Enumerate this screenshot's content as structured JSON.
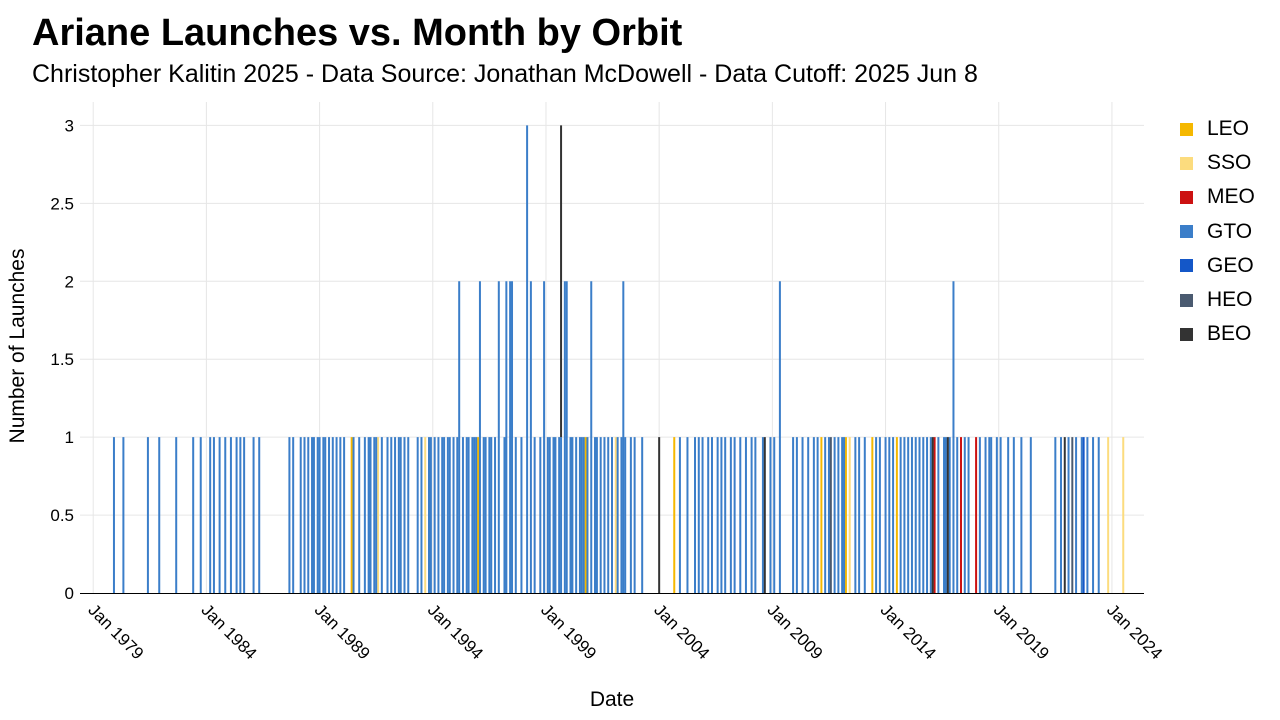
{
  "title": "Ariane Launches vs. Month by Orbit",
  "subtitle": "Christopher Kalitin 2025 - Data Source: Jonathan McDowell - Data Cutoff: 2025 Jun 8",
  "chart_data": {
    "type": "bar",
    "title": "Ariane Launches vs. Month by Orbit",
    "subtitle": "Christopher Kalitin 2025 - Data Source: Jonathan McDowell - Data Cutoff: 2025 Jun 8",
    "xlabel": "Date",
    "ylabel": "Number of Launches",
    "x_type": "date-month",
    "xlim": [
      "1978-06",
      "2025-06"
    ],
    "ylim": [
      0,
      3.15
    ],
    "x_ticks": [
      "1979-01",
      "1984-01",
      "1989-01",
      "1994-01",
      "1999-01",
      "2004-01",
      "2009-01",
      "2014-01",
      "2019-01",
      "2024-01"
    ],
    "x_tick_labels": [
      "Jan 1979",
      "Jan 1984",
      "Jan 1989",
      "Jan 1994",
      "Jan 1999",
      "Jan 2004",
      "Jan 2009",
      "Jan 2014",
      "Jan 2019",
      "Jan 2024"
    ],
    "y_ticks": [
      0,
      0.5,
      1,
      1.5,
      2,
      2.5,
      3
    ],
    "y_tick_labels": [
      "0",
      "0.5",
      "1",
      "1.5",
      "2",
      "2.5",
      "3"
    ],
    "grid": true,
    "stacked": true,
    "legend_position": "right",
    "series": [
      {
        "name": "LEO",
        "color": "#f5b800",
        "points": [
          [
            "1990-06",
            1
          ],
          [
            "1996-01",
            1
          ],
          [
            "2000-10",
            1
          ],
          [
            "2004-09",
            1
          ],
          [
            "2011-03",
            1
          ],
          [
            "2012-04",
            1
          ],
          [
            "2013-06",
            1
          ],
          [
            "2014-07",
            1
          ]
        ]
      },
      {
        "name": "SSO",
        "color": "#fcdc7e",
        "points": [
          [
            "1991-08",
            1
          ],
          [
            "1993-09",
            1
          ],
          [
            "2002-02",
            1
          ],
          [
            "2012-06",
            1
          ],
          [
            "2023-11",
            1
          ],
          [
            "2024-07",
            1
          ]
        ]
      },
      {
        "name": "MEO",
        "color": "#cc1111",
        "points": [
          [
            "2016-03",
            1
          ],
          [
            "2017-05",
            1
          ],
          [
            "2018-01",
            1
          ]
        ]
      },
      {
        "name": "GTO",
        "color": "#3b7ec9",
        "points": [
          [
            "1979-12",
            1
          ],
          [
            "1980-05",
            1
          ],
          [
            "1981-06",
            1
          ],
          [
            "1981-12",
            1
          ],
          [
            "1982-09",
            1
          ],
          [
            "1983-06",
            1
          ],
          [
            "1983-10",
            1
          ],
          [
            "1984-03",
            1
          ],
          [
            "1984-05",
            1
          ],
          [
            "1984-08",
            1
          ],
          [
            "1984-11",
            1
          ],
          [
            "1985-02",
            1
          ],
          [
            "1985-05",
            1
          ],
          [
            "1985-07",
            1
          ],
          [
            "1985-09",
            1
          ],
          [
            "1986-02",
            1
          ],
          [
            "1986-05",
            1
          ],
          [
            "1987-09",
            1
          ],
          [
            "1987-11",
            1
          ],
          [
            "1988-03",
            1
          ],
          [
            "1988-05",
            1
          ],
          [
            "1988-07",
            1
          ],
          [
            "1988-09",
            1
          ],
          [
            "1988-10",
            1
          ],
          [
            "1988-12",
            1
          ],
          [
            "1989-01",
            1
          ],
          [
            "1989-03",
            1
          ],
          [
            "1989-04",
            1
          ],
          [
            "1989-06",
            1
          ],
          [
            "1989-08",
            1
          ],
          [
            "1989-10",
            1
          ],
          [
            "1989-12",
            1
          ],
          [
            "1990-02",
            1
          ],
          [
            "1990-07",
            1
          ],
          [
            "1990-10",
            1
          ],
          [
            "1991-01",
            1
          ],
          [
            "1991-03",
            1
          ],
          [
            "1991-04",
            1
          ],
          [
            "1991-06",
            1
          ],
          [
            "1991-07",
            1
          ],
          [
            "1991-10",
            1
          ],
          [
            "1992-01",
            1
          ],
          [
            "1992-03",
            1
          ],
          [
            "1992-05",
            1
          ],
          [
            "1992-07",
            1
          ],
          [
            "1992-08",
            1
          ],
          [
            "1992-10",
            1
          ],
          [
            "1992-12",
            1
          ],
          [
            "1993-05",
            1
          ],
          [
            "1993-07",
            1
          ],
          [
            "1993-11",
            1
          ],
          [
            "1993-12",
            1
          ],
          [
            "1994-02",
            1
          ],
          [
            "1994-04",
            1
          ],
          [
            "1994-06",
            1
          ],
          [
            "1994-07",
            1
          ],
          [
            "1994-09",
            1
          ],
          [
            "1994-10",
            1
          ],
          [
            "1994-12",
            1
          ],
          [
            "1995-02",
            1
          ],
          [
            "1995-03",
            2
          ],
          [
            "1995-05",
            1
          ],
          [
            "1995-07",
            1
          ],
          [
            "1995-08",
            1
          ],
          [
            "1995-10",
            1
          ],
          [
            "1995-11",
            1
          ],
          [
            "1995-12",
            1
          ],
          [
            "1996-02",
            2
          ],
          [
            "1996-04",
            1
          ],
          [
            "1996-05",
            1
          ],
          [
            "1996-07",
            1
          ],
          [
            "1996-08",
            1
          ],
          [
            "1996-10",
            1
          ],
          [
            "1996-12",
            2
          ],
          [
            "1997-03",
            1
          ],
          [
            "1997-04",
            2
          ],
          [
            "1997-06",
            2
          ],
          [
            "1997-07",
            2
          ],
          [
            "1997-09",
            1
          ],
          [
            "1997-12",
            1
          ],
          [
            "1998-03",
            3
          ],
          [
            "1998-05",
            2
          ],
          [
            "1998-07",
            1
          ],
          [
            "1998-10",
            1
          ],
          [
            "1998-12",
            2
          ],
          [
            "1999-02",
            1
          ],
          [
            "1999-03",
            1
          ],
          [
            "1999-05",
            1
          ],
          [
            "1999-06",
            1
          ],
          [
            "1999-08",
            1
          ],
          [
            "1999-09",
            1
          ],
          [
            "1999-11",
            2
          ],
          [
            "1999-12",
            2
          ],
          [
            "2000-02",
            1
          ],
          [
            "2000-03",
            1
          ],
          [
            "2000-05",
            1
          ],
          [
            "2000-07",
            1
          ],
          [
            "2000-08",
            1
          ],
          [
            "2000-09",
            1
          ],
          [
            "2000-11",
            1
          ],
          [
            "2001-01",
            2
          ],
          [
            "2001-03",
            1
          ],
          [
            "2001-04",
            1
          ],
          [
            "2001-06",
            1
          ],
          [
            "2001-08",
            1
          ],
          [
            "2001-10",
            1
          ],
          [
            "2001-12",
            1
          ],
          [
            "2002-03",
            1
          ],
          [
            "2002-05",
            1
          ],
          [
            "2002-06",
            2
          ],
          [
            "2002-07",
            1
          ],
          [
            "2002-10",
            1
          ],
          [
            "2002-12",
            1
          ],
          [
            "2003-04",
            1
          ],
          [
            "2004-12",
            1
          ],
          [
            "2005-04",
            1
          ],
          [
            "2005-08",
            1
          ],
          [
            "2005-10",
            1
          ],
          [
            "2005-12",
            1
          ],
          [
            "2006-03",
            1
          ],
          [
            "2006-05",
            1
          ],
          [
            "2006-08",
            1
          ],
          [
            "2006-10",
            1
          ],
          [
            "2006-12",
            1
          ],
          [
            "2007-03",
            1
          ],
          [
            "2007-05",
            1
          ],
          [
            "2007-08",
            1
          ],
          [
            "2007-11",
            1
          ],
          [
            "2008-02",
            1
          ],
          [
            "2008-04",
            1
          ],
          [
            "2008-08",
            1
          ],
          [
            "2008-12",
            1
          ],
          [
            "2009-02",
            1
          ],
          [
            "2009-05",
            2
          ],
          [
            "2009-12",
            1
          ],
          [
            "2010-02",
            1
          ],
          [
            "2010-05",
            1
          ],
          [
            "2010-08",
            1
          ],
          [
            "2010-11",
            1
          ],
          [
            "2011-01",
            1
          ],
          [
            "2011-05",
            1
          ],
          [
            "2011-07",
            1
          ],
          [
            "2011-10",
            1
          ],
          [
            "2011-12",
            1
          ],
          [
            "2012-02",
            1
          ],
          [
            "2012-03",
            1
          ],
          [
            "2012-09",
            1
          ],
          [
            "2012-11",
            1
          ],
          [
            "2013-02",
            1
          ],
          [
            "2013-08",
            1
          ],
          [
            "2013-10",
            1
          ],
          [
            "2014-01",
            1
          ],
          [
            "2014-03",
            1
          ],
          [
            "2014-05",
            1
          ],
          [
            "2014-09",
            1
          ],
          [
            "2014-11",
            1
          ],
          [
            "2015-01",
            1
          ],
          [
            "2015-03",
            1
          ],
          [
            "2015-05",
            1
          ],
          [
            "2015-07",
            1
          ],
          [
            "2015-09",
            1
          ],
          [
            "2015-11",
            1
          ],
          [
            "2016-01",
            1
          ],
          [
            "2016-05",
            1
          ],
          [
            "2016-08",
            1
          ],
          [
            "2016-09",
            1
          ],
          [
            "2016-11",
            1
          ],
          [
            "2017-01",
            2
          ],
          [
            "2017-03",
            1
          ],
          [
            "2017-07",
            1
          ],
          [
            "2017-09",
            1
          ],
          [
            "2018-03",
            1
          ],
          [
            "2018-06",
            1
          ],
          [
            "2018-08",
            1
          ],
          [
            "2018-09",
            1
          ],
          [
            "2018-12",
            1
          ],
          [
            "2019-02",
            1
          ],
          [
            "2019-06",
            1
          ],
          [
            "2019-09",
            1
          ],
          [
            "2020-01",
            1
          ],
          [
            "2020-06",
            1
          ],
          [
            "2021-07",
            1
          ],
          [
            "2021-10",
            1
          ],
          [
            "2022-02",
            1
          ],
          [
            "2022-06",
            1
          ],
          [
            "2022-09",
            1
          ],
          [
            "2022-12",
            1
          ],
          [
            "2023-03",
            1
          ],
          [
            "2023-06",
            1
          ]
        ]
      },
      {
        "name": "GEO",
        "color": "#1457c8",
        "points": [
          [
            "2022-10",
            1
          ]
        ]
      },
      {
        "name": "HEO",
        "color": "#4a5a70",
        "points": [
          [
            "2011-08",
            1
          ],
          [
            "2022-04",
            1
          ]
        ]
      },
      {
        "name": "BEO",
        "color": "#333333",
        "points": [
          [
            "1999-09",
            2
          ],
          [
            "2004-01",
            1
          ],
          [
            "2008-09",
            1
          ],
          [
            "2016-02",
            1
          ],
          [
            "2016-10",
            1
          ],
          [
            "2021-12",
            1
          ]
        ]
      }
    ]
  }
}
